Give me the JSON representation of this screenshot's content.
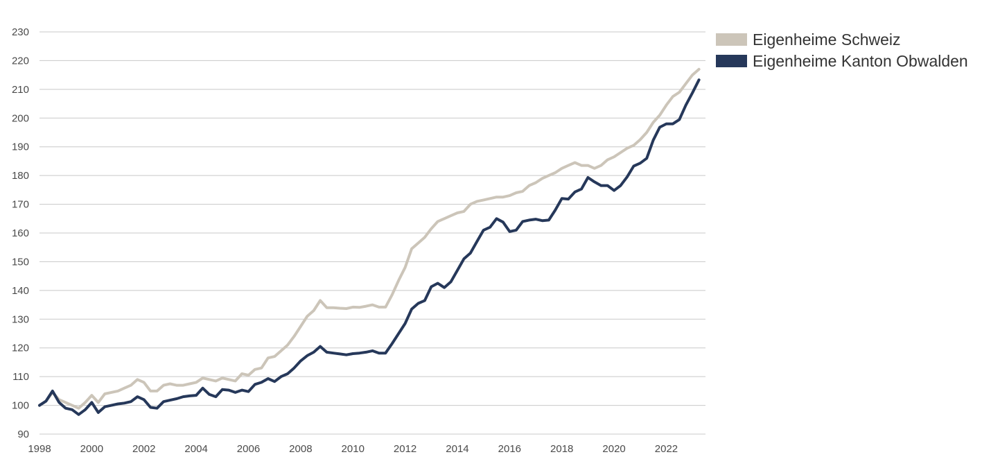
{
  "chart_data": {
    "type": "line",
    "title": "",
    "xlabel": "",
    "ylabel": "",
    "ylim": [
      90,
      230
    ],
    "yticks": [
      90,
      100,
      110,
      120,
      130,
      140,
      150,
      160,
      170,
      180,
      190,
      200,
      210,
      220,
      230
    ],
    "xlim": [
      1998,
      2023.5
    ],
    "xticks": [
      1998,
      2000,
      2002,
      2004,
      2006,
      2008,
      2010,
      2012,
      2014,
      2016,
      2018,
      2020,
      2022
    ],
    "grid": "horizontal",
    "legend_position": "top-right",
    "series": [
      {
        "name": "Eigenheime Schweiz",
        "color": "#ccc5b9",
        "x": [
          1998.0,
          1998.25,
          1998.5,
          1998.75,
          1999.0,
          1999.25,
          1999.5,
          1999.75,
          2000.0,
          2000.25,
          2000.5,
          2000.75,
          2001.0,
          2001.25,
          2001.5,
          2001.75,
          2002.0,
          2002.25,
          2002.5,
          2002.75,
          2003.0,
          2003.25,
          2003.5,
          2003.75,
          2004.0,
          2004.25,
          2004.5,
          2004.75,
          2005.0,
          2005.25,
          2005.5,
          2005.75,
          2006.0,
          2006.25,
          2006.5,
          2006.75,
          2007.0,
          2007.25,
          2007.5,
          2007.75,
          2008.0,
          2008.25,
          2008.5,
          2008.75,
          2009.0,
          2009.25,
          2009.5,
          2009.75,
          2010.0,
          2010.25,
          2010.5,
          2010.75,
          2011.0,
          2011.25,
          2011.5,
          2011.75,
          2012.0,
          2012.25,
          2012.5,
          2012.75,
          2013.0,
          2013.25,
          2013.5,
          2013.75,
          2014.0,
          2014.25,
          2014.5,
          2014.75,
          2015.0,
          2015.25,
          2015.5,
          2015.75,
          2016.0,
          2016.25,
          2016.5,
          2016.75,
          2017.0,
          2017.25,
          2017.5,
          2017.75,
          2018.0,
          2018.25,
          2018.5,
          2018.75,
          2019.0,
          2019.25,
          2019.5,
          2019.75,
          2020.0,
          2020.25,
          2020.5,
          2020.75,
          2021.0,
          2021.25,
          2021.5,
          2021.75,
          2022.0,
          2022.25,
          2022.5,
          2022.75,
          2023.0,
          2023.25
        ],
        "values": [
          100.0,
          101.5,
          104.5,
          102.0,
          101.0,
          100.0,
          99.0,
          101.0,
          103.5,
          101.0,
          104.0,
          104.5,
          105.0,
          106.0,
          107.0,
          109.0,
          108.0,
          105.0,
          105.0,
          107.0,
          107.5,
          107.0,
          107.0,
          107.5,
          108.0,
          109.5,
          109.0,
          108.5,
          109.5,
          109.0,
          108.5,
          111.0,
          110.5,
          112.5,
          113.0,
          116.5,
          117.0,
          119.0,
          121.0,
          124.0,
          127.5,
          131.0,
          133.0,
          136.5,
          134.0,
          134.0,
          133.8,
          133.7,
          134.2,
          134.1,
          134.5,
          135.0,
          134.2,
          134.2,
          138.5,
          143.5,
          148.0,
          154.5,
          156.5,
          158.5,
          161.5,
          164.0,
          165.0,
          166.0,
          167.0,
          167.5,
          170.0,
          171.0,
          171.5,
          172.0,
          172.5,
          172.5,
          173.0,
          174.0,
          174.5,
          176.5,
          177.5,
          179.0,
          180.0,
          181.0,
          182.5,
          183.5,
          184.5,
          183.5,
          183.5,
          182.5,
          183.5,
          185.5,
          186.5,
          188.0,
          189.5,
          190.5,
          192.5,
          195.0,
          198.5,
          201.0,
          204.5,
          207.5,
          209.0,
          212.0,
          215.0,
          217.0
        ]
      },
      {
        "name": "Eigenheime Kanton Obwalden",
        "color": "#26385a",
        "x": [
          1998.0,
          1998.25,
          1998.5,
          1998.75,
          1999.0,
          1999.25,
          1999.5,
          1999.75,
          2000.0,
          2000.25,
          2000.5,
          2000.75,
          2001.0,
          2001.25,
          2001.5,
          2001.75,
          2002.0,
          2002.25,
          2002.5,
          2002.75,
          2003.0,
          2003.25,
          2003.5,
          2003.75,
          2004.0,
          2004.25,
          2004.5,
          2004.75,
          2005.0,
          2005.25,
          2005.5,
          2005.75,
          2006.0,
          2006.25,
          2006.5,
          2006.75,
          2007.0,
          2007.25,
          2007.5,
          2007.75,
          2008.0,
          2008.25,
          2008.5,
          2008.75,
          2009.0,
          2009.25,
          2009.5,
          2009.75,
          2010.0,
          2010.25,
          2010.5,
          2010.75,
          2011.0,
          2011.25,
          2011.5,
          2011.75,
          2012.0,
          2012.25,
          2012.5,
          2012.75,
          2013.0,
          2013.25,
          2013.5,
          2013.75,
          2014.0,
          2014.25,
          2014.5,
          2014.75,
          2015.0,
          2015.25,
          2015.5,
          2015.75,
          2016.0,
          2016.25,
          2016.5,
          2016.75,
          2017.0,
          2017.25,
          2017.5,
          2017.75,
          2018.0,
          2018.25,
          2018.5,
          2018.75,
          2019.0,
          2019.25,
          2019.5,
          2019.75,
          2020.0,
          2020.25,
          2020.5,
          2020.75,
          2021.0,
          2021.25,
          2021.5,
          2021.75,
          2022.0,
          2022.25,
          2022.5,
          2022.75,
          2023.0,
          2023.25
        ],
        "values": [
          100.0,
          101.5,
          105.0,
          101.0,
          99.0,
          98.5,
          96.8,
          98.5,
          101.0,
          97.5,
          99.5,
          100.0,
          100.5,
          100.8,
          101.3,
          103.0,
          102.0,
          99.3,
          99.0,
          101.3,
          101.8,
          102.3,
          103.0,
          103.3,
          103.5,
          106.0,
          103.8,
          103.0,
          105.5,
          105.3,
          104.5,
          105.3,
          104.8,
          107.3,
          108.0,
          109.3,
          108.3,
          110.0,
          111.0,
          113.0,
          115.5,
          117.3,
          118.5,
          120.5,
          118.5,
          118.2,
          117.9,
          117.6,
          118.0,
          118.2,
          118.5,
          119.0,
          118.2,
          118.2,
          121.5,
          125.0,
          128.5,
          133.5,
          135.5,
          136.5,
          141.3,
          142.5,
          141.0,
          143.0,
          147.0,
          151.0,
          153.0,
          157.0,
          161.0,
          162.0,
          165.0,
          163.8,
          160.5,
          161.0,
          164.0,
          164.5,
          164.8,
          164.3,
          164.5,
          168.0,
          172.0,
          171.8,
          174.3,
          175.3,
          179.3,
          177.8,
          176.5,
          176.5,
          174.8,
          176.5,
          179.5,
          183.3,
          184.3,
          186.0,
          192.3,
          196.8,
          198.0,
          198.0,
          199.5,
          204.5,
          208.8,
          213.3
        ]
      }
    ]
  }
}
